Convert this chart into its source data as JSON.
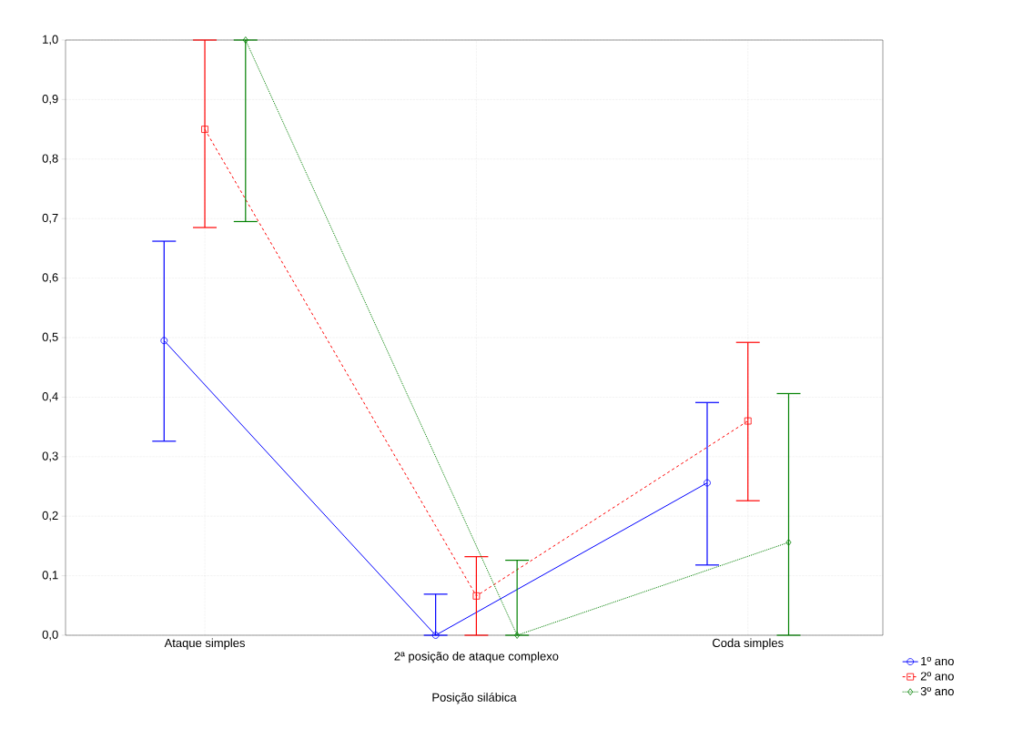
{
  "chart_data": {
    "type": "line",
    "xlabel": "Posição silábica",
    "categories": [
      "Ataque simples",
      "2ª posição de ataque complexo",
      "Coda simples"
    ],
    "series": [
      {
        "name": "1º ano",
        "color": "#0000ff",
        "marker": "circle",
        "line_style": "solid",
        "values": [
          0.495,
          0.0,
          0.256
        ],
        "errors": [
          [
            0.326,
            0.662
          ],
          [
            0.0,
            0.069
          ],
          [
            0.118,
            0.391
          ]
        ]
      },
      {
        "name": "2º ano",
        "color": "#ff0000",
        "marker": "square",
        "line_style": "dashed",
        "values": [
          0.85,
          0.066,
          0.36
        ],
        "errors": [
          [
            0.685,
            1.0
          ],
          [
            0.0,
            0.132
          ],
          [
            0.226,
            0.492
          ]
        ]
      },
      {
        "name": "3º ano",
        "color": "#008000",
        "marker": "diamond",
        "line_style": "dotted",
        "values": [
          1.0,
          0.0,
          0.156
        ],
        "errors": [
          [
            0.695,
            1.0
          ],
          [
            0.0,
            0.126
          ],
          [
            0.0,
            0.406
          ]
        ]
      }
    ],
    "ylim": [
      0,
      1
    ],
    "yticks": [
      {
        "value": 0,
        "label": "0,0"
      },
      {
        "value": 0.1,
        "label": "0,1"
      },
      {
        "value": 0.2,
        "label": "0,2"
      },
      {
        "value": 0.3,
        "label": "0,3"
      },
      {
        "value": 0.4,
        "label": "0,4"
      },
      {
        "value": 0.5,
        "label": "0,5"
      },
      {
        "value": 0.6,
        "label": "0,6"
      },
      {
        "value": 0.7,
        "label": "0,7"
      },
      {
        "value": 0.8,
        "label": "0,8"
      },
      {
        "value": 0.9,
        "label": "0,9"
      },
      {
        "value": 1,
        "label": "1,0"
      }
    ],
    "grid": true,
    "legend": "bottom right"
  }
}
